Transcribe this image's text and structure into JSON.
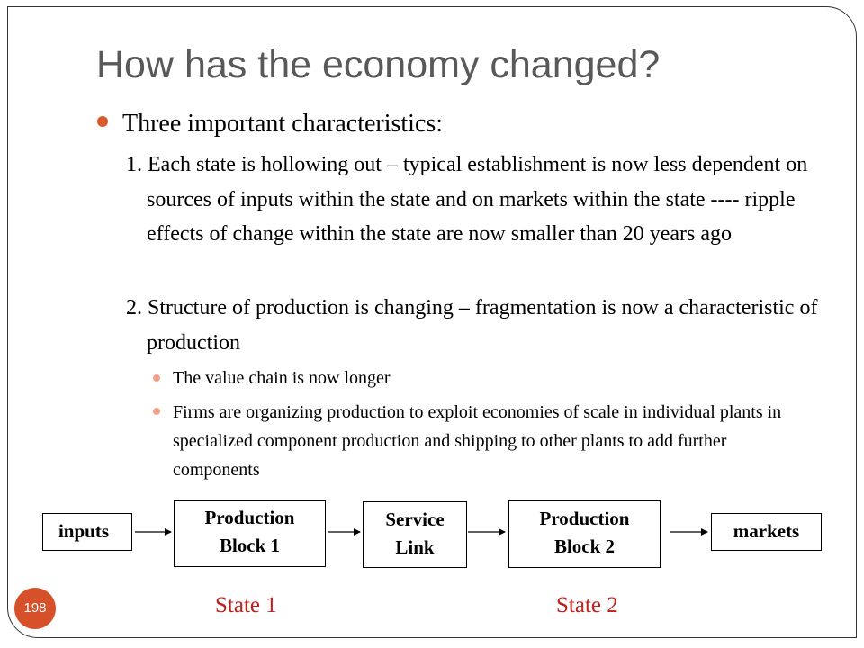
{
  "title": "How has the economy changed?",
  "bullet": "Three important characteristics:",
  "items": [
    {
      "text": "1. Each state is hollowing out – typical establishment is now less dependent on sources of inputs within the state and on markets within the state ---- ripple effects of change within the state are now smaller than 20 years ago"
    },
    {
      "text": "2. Structure of production is changing – fragmentation is now a characteristic of production",
      "subitems": [
        "The value chain is now longer",
        "Firms are organizing production to exploit economies of scale in individual plants in specialized component production and shipping to other plants to add further components"
      ]
    }
  ],
  "diagram": {
    "inputs": "inputs",
    "block1": [
      "Production",
      "Block 1"
    ],
    "service_link": [
      "Service",
      "Link"
    ],
    "block2": [
      "Production",
      "Block 2"
    ],
    "markets": "markets",
    "state1": "State 1",
    "state2": "State 2"
  },
  "slide_number": "198",
  "colors": {
    "title": "#595959",
    "bullet": "#d85a2c",
    "sub_bullet": "#f2a38a",
    "state_label": "#c0201a",
    "badge": "#d6502a"
  }
}
